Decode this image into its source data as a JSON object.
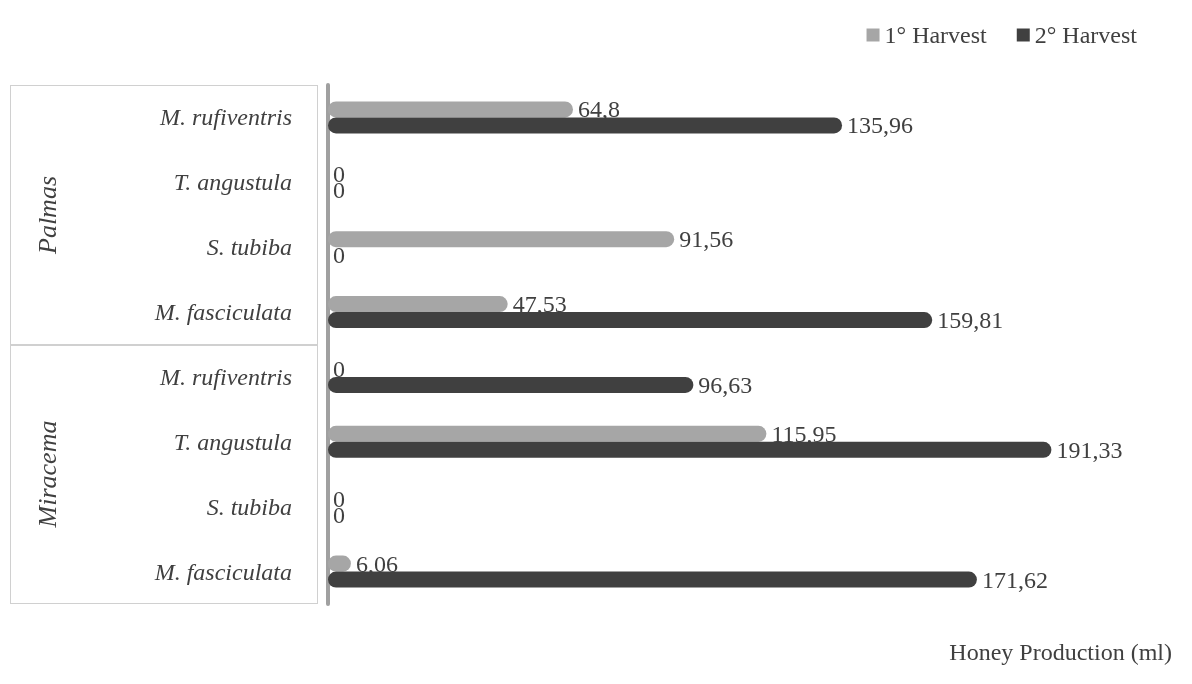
{
  "chart_data": {
    "type": "bar",
    "orientation": "horizontal",
    "categories": [
      "M. rufiventris",
      "T. angustula",
      "S. tubiba",
      "M. fasciculata",
      "M. rufiventris",
      "T. angustula",
      "S. tubiba",
      "M. fasciculata"
    ],
    "series": [
      {
        "name": "1° Harvest",
        "color": "#a6a6a6",
        "values": [
          64.8,
          0,
          91.56,
          47.53,
          0,
          115.95,
          0,
          6.06
        ],
        "value_labels": [
          "64,8",
          "0",
          "91,56",
          "47,53",
          "0",
          "115,95",
          "0",
          "6,06"
        ]
      },
      {
        "name": "2° Harvest",
        "color": "#404040",
        "values": [
          135.96,
          0,
          0,
          159.81,
          96.63,
          191.33,
          0,
          171.62
        ],
        "value_labels": [
          "135,96",
          "0",
          "0",
          "159,81",
          "96,63",
          "191,33",
          "0",
          "171,62"
        ]
      }
    ],
    "xlabel": "Honey Production (ml)",
    "annotations": [
      "Palmas",
      "Miracema"
    ],
    "legend": "top right"
  }
}
